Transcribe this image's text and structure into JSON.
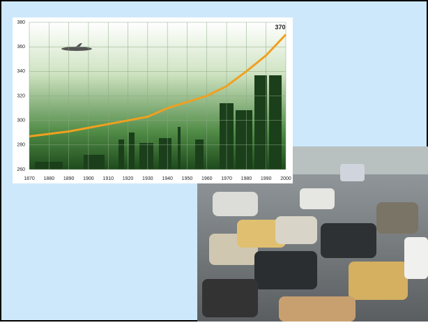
{
  "chart_data": {
    "type": "line",
    "x": [
      1870,
      1880,
      1890,
      1900,
      1910,
      1920,
      1930,
      1940,
      1950,
      1960,
      1970,
      1980,
      1990,
      2000
    ],
    "values": [
      287,
      289,
      291,
      294,
      297,
      300,
      303,
      310,
      315,
      320,
      328,
      340,
      353,
      370
    ],
    "color": "#f0a020",
    "xlim": [
      1870,
      2000
    ],
    "xticks": [
      1870,
      1880,
      1890,
      1900,
      1910,
      1920,
      1930,
      1940,
      1950,
      1960,
      1970,
      1980,
      1990,
      2000
    ],
    "ylim": [
      260,
      380
    ],
    "yticks": [
      260,
      280,
      300,
      320,
      340,
      360,
      380
    ],
    "grid": true,
    "annotation": "370"
  }
}
